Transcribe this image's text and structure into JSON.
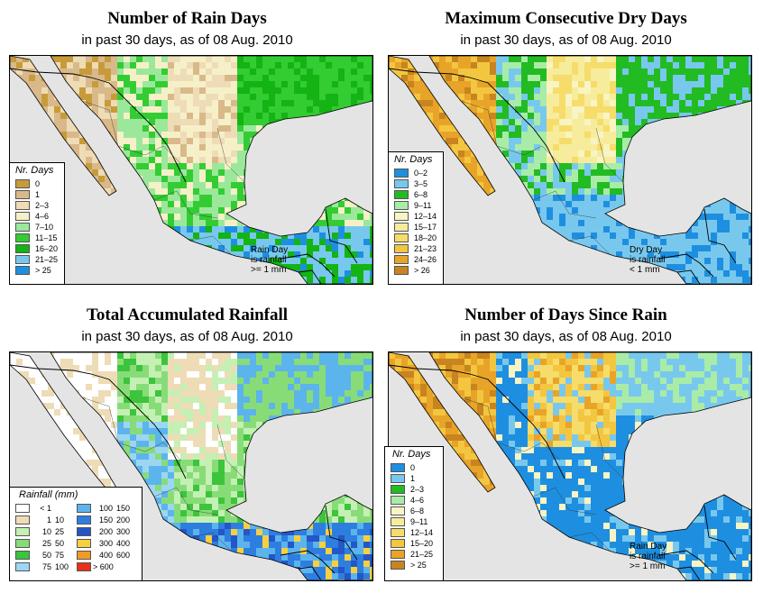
{
  "panels": [
    {
      "title": "Number of Rain Days",
      "subtitle": "in past 30 days, as of  08 Aug. 2010",
      "legend_title": "Nr. Days",
      "legend": [
        {
          "label": "0",
          "color": "#c89b3a"
        },
        {
          "label": "1",
          "color": "#d9b98a"
        },
        {
          "label": "2–3",
          "color": "#eedcb6"
        },
        {
          "label": "4–6",
          "color": "#f6f0c8"
        },
        {
          "label": "7–10",
          "color": "#9be89b"
        },
        {
          "label": "11–15",
          "color": "#33cc33"
        },
        {
          "label": "16–20",
          "color": "#13b413"
        },
        {
          "label": "21–25",
          "color": "#78c8ee"
        },
        {
          "label": "> 25",
          "color": "#1e8fe0"
        }
      ],
      "note": [
        "Rain Day",
        "is rainfall",
        ">= 1 mm"
      ],
      "scheme": "rain"
    },
    {
      "title": "Maximum Consecutive Dry Days",
      "subtitle": "in past 30 days, as of  08 Aug. 2010",
      "legend_title": "Nr. Days",
      "legend": [
        {
          "label": "0–2",
          "color": "#1e8fe0"
        },
        {
          "label": "3–5",
          "color": "#78c8ee"
        },
        {
          "label": "6–8",
          "color": "#22bb22"
        },
        {
          "label": "9–11",
          "color": "#a8eca8"
        },
        {
          "label": "12–14",
          "color": "#f8f4c4"
        },
        {
          "label": "15–17",
          "color": "#f7ec9c"
        },
        {
          "label": "18–20",
          "color": "#f6dc6a"
        },
        {
          "label": "21–23",
          "color": "#f3c640"
        },
        {
          "label": "24–26",
          "color": "#e8a428"
        },
        {
          "label": "> 26",
          "color": "#c88420"
        }
      ],
      "note": [
        "Dry Day",
        "is rainfall",
        "< 1 mm"
      ],
      "scheme": "dry"
    },
    {
      "title": "Total Accumulated Rainfall",
      "subtitle": "in past 30 days, as of  08 Aug. 2010",
      "legend_title": "Rainfall (mm)",
      "legend_left": [
        {
          "a": "< 1",
          "b": "",
          "color": "#ffffff"
        },
        {
          "a": "1",
          "b": "10",
          "color": "#eedcb6"
        },
        {
          "a": "10",
          "b": "25",
          "color": "#c4f0b4"
        },
        {
          "a": "25",
          "b": "50",
          "color": "#88dc78"
        },
        {
          "a": "50",
          "b": "75",
          "color": "#3cc43c"
        },
        {
          "a": "75",
          "b": "100",
          "color": "#9cd6f2"
        }
      ],
      "legend_right": [
        {
          "a": "100",
          "b": "150",
          "color": "#5cb4ec"
        },
        {
          "a": "150",
          "b": "200",
          "color": "#2e7ee0"
        },
        {
          "a": "200",
          "b": "300",
          "color": "#2356c8"
        },
        {
          "a": "300",
          "b": "400",
          "color": "#f6d040"
        },
        {
          "a": "400",
          "b": "600",
          "color": "#f09a28"
        },
        {
          "a": "> 600",
          "b": "",
          "color": "#e83018"
        }
      ],
      "scheme": "total"
    },
    {
      "title": "Number of Days Since Rain",
      "subtitle": "in past 30 days, as of  08 Aug. 2010",
      "legend_title": "Nr. Days",
      "legend": [
        {
          "label": "0",
          "color": "#1e8fe0"
        },
        {
          "label": "1",
          "color": "#78c8ee"
        },
        {
          "label": "2–3",
          "color": "#22bb22"
        },
        {
          "label": "4–6",
          "color": "#a8eca8"
        },
        {
          "label": "6–8",
          "color": "#f8f4c4"
        },
        {
          "label": "9–11",
          "color": "#f7ec9c"
        },
        {
          "label": "12–14",
          "color": "#f6dc6a"
        },
        {
          "label": "15–20",
          "color": "#f3c640"
        },
        {
          "label": "21–25",
          "color": "#e8a428"
        },
        {
          "label": "> 25",
          "color": "#c88420"
        }
      ],
      "note": [
        "Rain Day",
        "is rainfall",
        ">= 1 mm"
      ],
      "scheme": "since"
    }
  ],
  "colors": {
    "water": "#e4e4e4",
    "border": "#000000"
  }
}
